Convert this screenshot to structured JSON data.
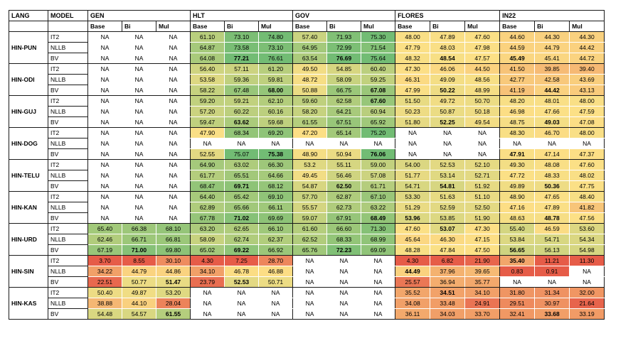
{
  "header": {
    "lang": "LANG",
    "model": "MODEL",
    "groups": [
      "GEN",
      "HLT",
      "GOV",
      "FLORES",
      "IN22"
    ],
    "subcols": [
      "Base",
      "Bi",
      "Mul"
    ]
  },
  "rows": [
    {
      "lang": "HIN-PUN",
      "models": [
        {
          "name": "IT2",
          "values": [
            "NA",
            "NA",
            "NA",
            "61.10",
            "73.10",
            "74.80",
            "57.40",
            "71.93",
            "75.30",
            "48.00",
            "47.89",
            "47.60",
            "44.60",
            "44.30",
            "44.30"
          ],
          "bold": []
        },
        {
          "name": "NLLB",
          "values": [
            "NA",
            "NA",
            "NA",
            "64.87",
            "73.58",
            "73.10",
            "64.95",
            "72.99",
            "71.54",
            "47.79",
            "48.03",
            "47.98",
            "44.59",
            "44.79",
            "44.42"
          ],
          "bold": []
        },
        {
          "name": "BV",
          "values": [
            "NA",
            "NA",
            "NA",
            "64.08",
            "77.21",
            "76.61",
            "63.54",
            "76.69",
            "75.64",
            "48.32",
            "48.54",
            "47.57",
            "45.49",
            "45.41",
            "44.72"
          ],
          "bold": [
            4,
            7,
            10,
            12
          ]
        }
      ]
    },
    {
      "lang": "HIN-ODI",
      "models": [
        {
          "name": "IT2",
          "values": [
            "NA",
            "NA",
            "NA",
            "56.40",
            "57.11",
            "61.20",
            "49.50",
            "54.85",
            "60.40",
            "47.30",
            "46.06",
            "44.50",
            "41.50",
            "39.85",
            "39.40"
          ],
          "bold": []
        },
        {
          "name": "NLLB",
          "values": [
            "NA",
            "NA",
            "NA",
            "53.58",
            "59.36",
            "59.81",
            "48.72",
            "58.09",
            "59.25",
            "46.31",
            "49.09",
            "48.56",
            "42.77",
            "42.58",
            "43.69"
          ],
          "bold": []
        },
        {
          "name": "BV",
          "values": [
            "NA",
            "NA",
            "NA",
            "58.22",
            "67.48",
            "68.00",
            "50.88",
            "66.75",
            "67.08",
            "47.99",
            "50.22",
            "48.99",
            "41.19",
            "44.42",
            "43.13"
          ],
          "bold": [
            5,
            8,
            10,
            13
          ]
        }
      ]
    },
    {
      "lang": "HIN-GUJ",
      "models": [
        {
          "name": "IT2",
          "values": [
            "NA",
            "NA",
            "NA",
            "59.20",
            "59.21",
            "62.10",
            "59.60",
            "62.58",
            "67.60",
            "51.50",
            "49.72",
            "50.70",
            "48.20",
            "48.01",
            "48.00"
          ],
          "bold": [
            8
          ]
        },
        {
          "name": "NLLB",
          "values": [
            "NA",
            "NA",
            "NA",
            "57.20",
            "60.22",
            "60.16",
            "58.20",
            "64.21",
            "60.94",
            "50.23",
            "50.87",
            "50.18",
            "46.98",
            "47.66",
            "47.59"
          ],
          "bold": []
        },
        {
          "name": "BV",
          "values": [
            "NA",
            "NA",
            "NA",
            "59.47",
            "63.62",
            "59.68",
            "61.55",
            "67.51",
            "65.92",
            "51.80",
            "52.25",
            "49.54",
            "48.75",
            "49.03",
            "47.08"
          ],
          "bold": [
            4,
            10,
            13
          ]
        }
      ]
    },
    {
      "lang": "HIN-DOG",
      "models": [
        {
          "name": "IT2",
          "values": [
            "NA",
            "NA",
            "NA",
            "47.90",
            "68.34",
            "69.20",
            "47.20",
            "65.14",
            "75.20",
            "NA",
            "NA",
            "NA",
            "48.30",
            "46.70",
            "48.00"
          ],
          "bold": []
        },
        {
          "name": "NLLB",
          "values": [
            "NA",
            "NA",
            "NA",
            "NA",
            "NA",
            "NA",
            "NA",
            "NA",
            "NA",
            "NA",
            "NA",
            "NA",
            "NA",
            "NA",
            "NA"
          ],
          "bold": []
        },
        {
          "name": "BV",
          "values": [
            "NA",
            "NA",
            "NA",
            "52.55",
            "75.07",
            "75.38",
            "48.90",
            "50.94",
            "76.06",
            "NA",
            "NA",
            "NA",
            "47.91",
            "47.14",
            "47.37"
          ],
          "bold": [
            5,
            8,
            12
          ]
        }
      ]
    },
    {
      "lang": "HIN-TELU",
      "models": [
        {
          "name": "IT2",
          "values": [
            "NA",
            "NA",
            "NA",
            "64.90",
            "63.02",
            "66.30",
            "53.2",
            "55.11",
            "59.00",
            "54.00",
            "52.53",
            "52.10",
            "49.30",
            "48.08",
            "47.60"
          ],
          "bold": []
        },
        {
          "name": "NLLB",
          "values": [
            "NA",
            "NA",
            "NA",
            "61.77",
            "65.51",
            "64.66",
            "49.45",
            "56.46",
            "57.08",
            "51.77",
            "53.14",
            "52.71",
            "47.72",
            "48.33",
            "48.02"
          ],
          "bold": []
        },
        {
          "name": "BV",
          "values": [
            "NA",
            "NA",
            "NA",
            "68.47",
            "69.71",
            "68.12",
            "54.87",
            "62.50",
            "61.71",
            "54.71",
            "54.81",
            "51.92",
            "49.89",
            "50.36",
            "47.75"
          ],
          "bold": [
            4,
            7,
            10,
            13
          ]
        }
      ]
    },
    {
      "lang": "HIN-KAN",
      "models": [
        {
          "name": "IT2",
          "values": [
            "NA",
            "NA",
            "NA",
            "64.40",
            "65.42",
            "69.10",
            "57.70",
            "62.87",
            "67.10",
            "53.30",
            "51.63",
            "51.10",
            "48.90",
            "47.65",
            "48.40"
          ],
          "bold": []
        },
        {
          "name": "NLLB",
          "values": [
            "NA",
            "NA",
            "NA",
            "62.89",
            "65.66",
            "66.11",
            "55.57",
            "62.73",
            "63.22",
            "51.29",
            "52.59",
            "52.50",
            "47.16",
            "47.89",
            "41.82"
          ],
          "bold": []
        },
        {
          "name": "BV",
          "values": [
            "NA",
            "NA",
            "NA",
            "67.78",
            "71.02",
            "69.69",
            "59.07",
            "67.91",
            "68.49",
            "53.96",
            "53.85",
            "51.90",
            "48.63",
            "48.78",
            "47.56"
          ],
          "bold": [
            4,
            8,
            9,
            13
          ]
        }
      ]
    },
    {
      "lang": "HIN-URD",
      "models": [
        {
          "name": "IT2",
          "values": [
            "65.40",
            "66.38",
            "68.10",
            "63.20",
            "62.65",
            "66.10",
            "61.60",
            "66.60",
            "71.30",
            "47.60",
            "53.07",
            "47.30",
            "55.40",
            "46.59",
            "53.60"
          ],
          "bold": [
            10
          ]
        },
        {
          "name": "NLLB",
          "values": [
            "62.46",
            "66.71",
            "66.81",
            "58.09",
            "62.74",
            "62.37",
            "62.52",
            "68.33",
            "68.99",
            "45.64",
            "46.30",
            "47.15",
            "53.84",
            "54.71",
            "54.34"
          ],
          "bold": []
        },
        {
          "name": "BV",
          "values": [
            "67.19",
            "71.00",
            "69.80",
            "65.02",
            "69.22",
            "66.92",
            "65.76",
            "72.23",
            "69.09",
            "48.28",
            "47.84",
            "47.50",
            "56.65",
            "56.13",
            "54.98"
          ],
          "bold": [
            1,
            4,
            7,
            12
          ]
        }
      ]
    },
    {
      "lang": "HIN-SIN",
      "models": [
        {
          "name": "IT2",
          "values": [
            "3.70",
            "8.55",
            "30.10",
            "4.30",
            "7.25",
            "28.70",
            "NA",
            "NA",
            "NA",
            "4.30",
            "6.82",
            "21.90",
            "35.40",
            "11.21",
            "11.30"
          ],
          "bold": [
            12
          ]
        },
        {
          "name": "NLLB",
          "values": [
            "34.22",
            "44.79",
            "44.86",
            "34.10",
            "46.78",
            "46.88",
            "NA",
            "NA",
            "NA",
            "44.49",
            "37.96",
            "39.65",
            "0.83",
            "0.91",
            "NA"
          ],
          "bold": [
            9
          ]
        },
        {
          "name": "BV",
          "values": [
            "22.51",
            "50.77",
            "51.47",
            "23.79",
            "52.53",
            "50.71",
            "NA",
            "NA",
            "NA",
            "25.57",
            "36.94",
            "35.77",
            "NA",
            "NA",
            "NA"
          ],
          "bold": [
            2,
            4
          ]
        }
      ]
    },
    {
      "lang": "HIN-KAS",
      "models": [
        {
          "name": "IT2",
          "values": [
            "50.40",
            "49.87",
            "53.20",
            "NA",
            "NA",
            "NA",
            "NA",
            "NA",
            "NA",
            "35.52",
            "34.51",
            "34.10",
            "31.80",
            "31.34",
            "32.00"
          ],
          "bold": [
            10
          ]
        },
        {
          "name": "NLLB",
          "values": [
            "38.88",
            "44.10",
            "28.04",
            "NA",
            "NA",
            "NA",
            "NA",
            "NA",
            "NA",
            "34.08",
            "33.48",
            "24.91",
            "29.51",
            "30.97",
            "21.64"
          ],
          "bold": []
        },
        {
          "name": "BV",
          "values": [
            "54.48",
            "54.57",
            "61.55",
            "NA",
            "NA",
            "NA",
            "NA",
            "NA",
            "NA",
            "36.11",
            "34.03",
            "33.70",
            "32.41",
            "33.68",
            "33.19"
          ],
          "bold": [
            2,
            13
          ]
        }
      ]
    }
  ]
}
